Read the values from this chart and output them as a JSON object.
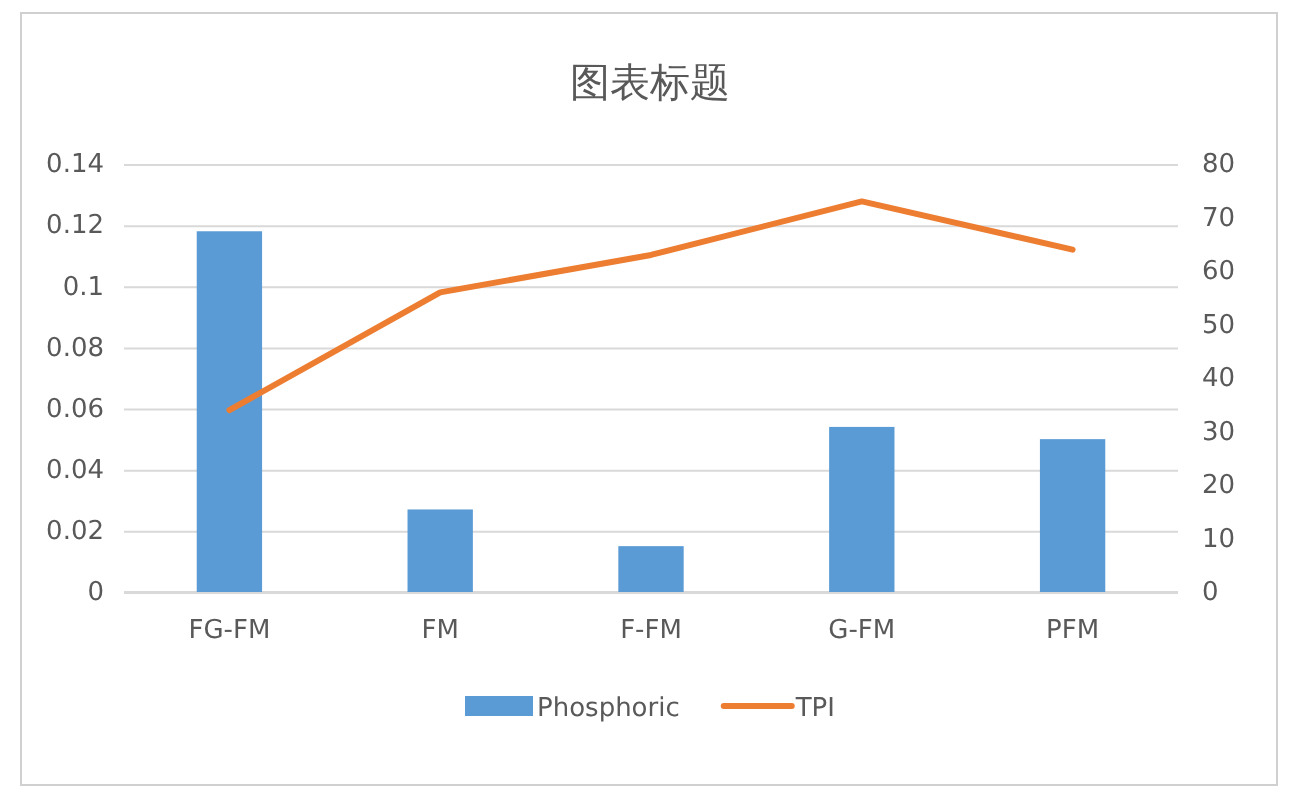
{
  "chart_data": {
    "type": "bar",
    "title": "图表标题",
    "categories": [
      "FG-FM",
      "FM",
      "F-FM",
      "G-FM",
      "PFM"
    ],
    "series": [
      {
        "name": "Phosphoric",
        "color": "#5b9bd5",
        "values": [
          0.118,
          0.027,
          0.015,
          0.054,
          0.05
        ]
      },
      {
        "name": "TPI",
        "type": "line",
        "axis": "y2",
        "color": "#ed7d31",
        "values": [
          34,
          56,
          63,
          73,
          64
        ]
      }
    ],
    "ylim": [
      0,
      0.14
    ],
    "yticks": [
      0,
      0.02,
      0.04,
      0.06,
      0.08,
      0.1,
      0.12,
      0.14
    ],
    "y2lim": [
      0,
      80
    ],
    "y2ticks": [
      0,
      10,
      20,
      30,
      40,
      50,
      60,
      70,
      80
    ],
    "grid": "y",
    "legend": "bottom",
    "marker": "none",
    "line_style": "solid"
  }
}
